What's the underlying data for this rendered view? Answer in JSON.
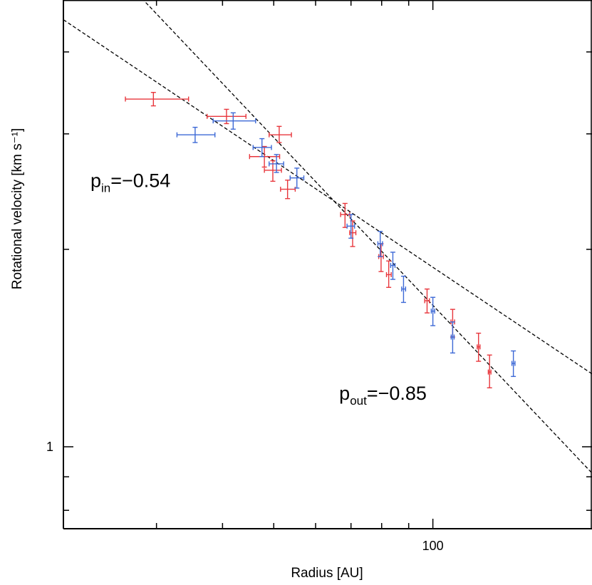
{
  "chart_data": {
    "type": "scatter",
    "title": "",
    "xlabel": "Radius [AU]",
    "ylabel": "Rotational velocity [km s⁻¹]",
    "xscale": "log",
    "yscale": "log",
    "xlim": [
      20,
      200
    ],
    "ylim": [
      0.75,
      4.8
    ],
    "x_tick_labels": [
      {
        "value": 100,
        "label": "100"
      }
    ],
    "y_tick_labels": [
      {
        "value": 1,
        "label": "1"
      }
    ],
    "x_minor_ticks": [
      30,
      40,
      50,
      60,
      70,
      80,
      90
    ],
    "y_minor_ticks": [
      0.8,
      0.9,
      2,
      3,
      4
    ],
    "grid": false,
    "colors": {
      "red": "#e8363c",
      "blue": "#3d69d6",
      "fit": "#000000",
      "axis": "#000000"
    },
    "series": [
      {
        "name": "red",
        "color": "#e8363c",
        "points": [
          {
            "x": 29.6,
            "y": 3.39,
            "xlo": 26.2,
            "xhi": 34.5,
            "ylo": 3.31,
            "yhi": 3.47
          },
          {
            "x": 40.7,
            "y": 3.19,
            "xlo": 37.4,
            "xhi": 44.3,
            "ylo": 3.11,
            "yhi": 3.27
          },
          {
            "x": 51.2,
            "y": 2.99,
            "xlo": 49.0,
            "xhi": 54.0,
            "ylo": 2.91,
            "yhi": 3.08
          },
          {
            "x": 48.0,
            "y": 2.77,
            "xlo": 45.0,
            "xhi": 51.3,
            "ylo": 2.67,
            "yhi": 2.87
          },
          {
            "x": 49.8,
            "y": 2.64,
            "xlo": 48.0,
            "xhi": 51.7,
            "ylo": 2.54,
            "yhi": 2.73
          },
          {
            "x": 53.1,
            "y": 2.47,
            "xlo": 51.5,
            "xhi": 54.9,
            "ylo": 2.39,
            "yhi": 2.55
          },
          {
            "x": 68.2,
            "y": 2.26,
            "xlo": 66.9,
            "xhi": 69.6,
            "ylo": 2.16,
            "yhi": 2.35
          },
          {
            "x": 70.5,
            "y": 2.12,
            "xlo": 69.6,
            "xhi": 71.5,
            "ylo": 2.02,
            "yhi": 2.21
          },
          {
            "x": 79.8,
            "y": 1.95,
            "xlo": 79.0,
            "xhi": 80.6,
            "ylo": 1.85,
            "yhi": 2.04
          },
          {
            "x": 82.5,
            "y": 1.83,
            "xlo": 81.7,
            "xhi": 83.4,
            "ylo": 1.75,
            "yhi": 1.92
          },
          {
            "x": 97.5,
            "y": 1.67,
            "xlo": 96.5,
            "xhi": 98.5,
            "ylo": 1.6,
            "yhi": 1.74
          },
          {
            "x": 109.0,
            "y": 1.55,
            "xlo": 108.2,
            "xhi": 109.9,
            "ylo": 1.47,
            "yhi": 1.62
          },
          {
            "x": 122.0,
            "y": 1.42,
            "xlo": 121.3,
            "xhi": 122.8,
            "ylo": 1.35,
            "yhi": 1.49
          },
          {
            "x": 128.0,
            "y": 1.3,
            "xlo": 127.3,
            "xhi": 128.8,
            "ylo": 1.23,
            "yhi": 1.38
          }
        ]
      },
      {
        "name": "blue",
        "color": "#3d69d6",
        "points": [
          {
            "x": 35.5,
            "y": 2.99,
            "xlo": 32.8,
            "xhi": 38.7,
            "ylo": 2.91,
            "yhi": 3.07
          },
          {
            "x": 41.9,
            "y": 3.14,
            "xlo": 38.4,
            "xhi": 46.2,
            "ylo": 3.05,
            "yhi": 3.23
          },
          {
            "x": 47.5,
            "y": 2.86,
            "xlo": 45.7,
            "xhi": 49.5,
            "ylo": 2.77,
            "yhi": 2.95
          },
          {
            "x": 50.6,
            "y": 2.7,
            "xlo": 49.0,
            "xhi": 52.2,
            "ylo": 2.62,
            "yhi": 2.79
          },
          {
            "x": 55.3,
            "y": 2.57,
            "xlo": 53.7,
            "xhi": 57.0,
            "ylo": 2.48,
            "yhi": 2.66
          },
          {
            "x": 70.0,
            "y": 2.17,
            "xlo": 68.8,
            "xhi": 71.1,
            "ylo": 2.08,
            "yhi": 2.26
          },
          {
            "x": 79.5,
            "y": 2.04,
            "xlo": 78.7,
            "xhi": 80.3,
            "ylo": 1.95,
            "yhi": 2.13
          },
          {
            "x": 84.0,
            "y": 1.89,
            "xlo": 83.2,
            "xhi": 84.8,
            "ylo": 1.8,
            "yhi": 1.98
          },
          {
            "x": 88.0,
            "y": 1.74,
            "xlo": 87.3,
            "xhi": 88.8,
            "ylo": 1.66,
            "yhi": 1.82
          },
          {
            "x": 100.0,
            "y": 1.61,
            "xlo": 99.3,
            "xhi": 100.8,
            "ylo": 1.53,
            "yhi": 1.69
          },
          {
            "x": 109.0,
            "y": 1.47,
            "xlo": 108.3,
            "xhi": 109.7,
            "ylo": 1.39,
            "yhi": 1.55
          },
          {
            "x": 142.0,
            "y": 1.34,
            "xlo": 141.1,
            "xhi": 143.0,
            "ylo": 1.28,
            "yhi": 1.4
          }
        ]
      }
    ],
    "fits": [
      {
        "name": "inner-fit",
        "slope": -0.54,
        "x_range": [
          20,
          200
        ],
        "anchor": {
          "x": 65,
          "y": 2.37
        }
      },
      {
        "name": "outer-fit",
        "slope": -0.85,
        "x_range": [
          20,
          200
        ],
        "anchor": {
          "x": 65,
          "y": 2.37
        }
      }
    ],
    "annotations": [
      {
        "name": "inner-slope-label",
        "base": "p",
        "sub": "in",
        "text": "=−0.54",
        "x": 22.5,
        "y": 2.49
      },
      {
        "name": "outer-slope-label",
        "base": "p",
        "sub": "out",
        "text": "=−0.85",
        "x": 66.5,
        "y": 1.18
      }
    ]
  }
}
